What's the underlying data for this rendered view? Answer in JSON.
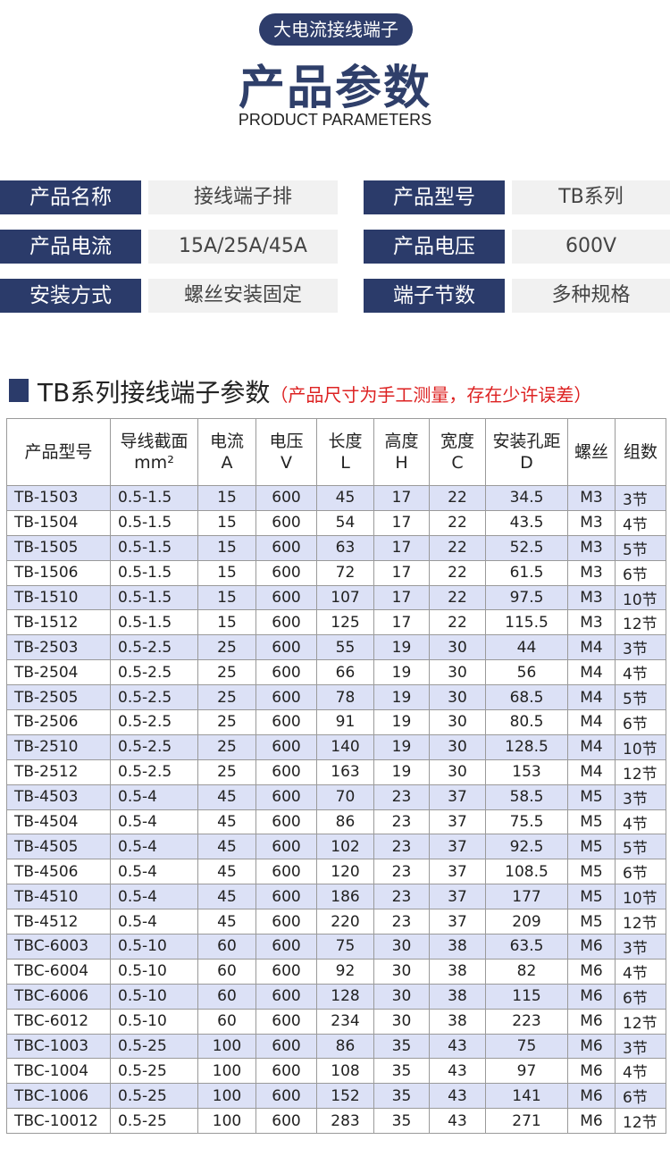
{
  "header": {
    "badge": "大电流接线端子",
    "title": "产品参数",
    "subtitle": "PRODUCT PARAMETERS"
  },
  "specs": [
    {
      "label": "产品名称",
      "value": "接线端子排"
    },
    {
      "label": "产品型号",
      "value": "TB系列"
    },
    {
      "label": "产品电流",
      "value": "15A/25A/45A"
    },
    {
      "label": "产品电压",
      "value": "600V"
    },
    {
      "label": "安装方式",
      "value": "螺丝安装固定"
    },
    {
      "label": "端子节数",
      "value": "多种规格"
    }
  ],
  "section": {
    "title": "TB系列接线端子参数",
    "note": "（产品尺寸为手工测量，存在少许误差）"
  },
  "table": {
    "header": [
      [
        "产品型号"
      ],
      [
        "导线截面",
        "mm²"
      ],
      [
        "电流",
        "A"
      ],
      [
        "电压",
        "V"
      ],
      [
        "长度",
        "L"
      ],
      [
        "高度",
        "H"
      ],
      [
        "宽度",
        "C"
      ],
      [
        "安装孔距",
        "D"
      ],
      [
        "螺丝"
      ],
      [
        "组数"
      ]
    ],
    "rows": [
      [
        "TB-1503",
        "0.5-1.5",
        "15",
        "600",
        "45",
        "17",
        "22",
        "34.5",
        "M3",
        "3节"
      ],
      [
        "TB-1504",
        "0.5-1.5",
        "15",
        "600",
        "54",
        "17",
        "22",
        "43.5",
        "M3",
        "4节"
      ],
      [
        "TB-1505",
        "0.5-1.5",
        "15",
        "600",
        "63",
        "17",
        "22",
        "52.5",
        "M3",
        "5节"
      ],
      [
        "TB-1506",
        "0.5-1.5",
        "15",
        "600",
        "72",
        "17",
        "22",
        "61.5",
        "M3",
        "6节"
      ],
      [
        "TB-1510",
        "0.5-1.5",
        "15",
        "600",
        "107",
        "17",
        "22",
        "97.5",
        "M3",
        "10节"
      ],
      [
        "TB-1512",
        "0.5-1.5",
        "15",
        "600",
        "125",
        "17",
        "22",
        "115.5",
        "M3",
        "12节"
      ],
      [
        "TB-2503",
        "0.5-2.5",
        "25",
        "600",
        "55",
        "19",
        "30",
        "44",
        "M4",
        "3节"
      ],
      [
        "TB-2504",
        "0.5-2.5",
        "25",
        "600",
        "66",
        "19",
        "30",
        "56",
        "M4",
        "4节"
      ],
      [
        "TB-2505",
        "0.5-2.5",
        "25",
        "600",
        "78",
        "19",
        "30",
        "68.5",
        "M4",
        "5节"
      ],
      [
        "TB-2506",
        "0.5-2.5",
        "25",
        "600",
        "91",
        "19",
        "30",
        "80.5",
        "M4",
        "6节"
      ],
      [
        "TB-2510",
        "0.5-2.5",
        "25",
        "600",
        "140",
        "19",
        "30",
        "128.5",
        "M4",
        "10节"
      ],
      [
        "TB-2512",
        "0.5-2.5",
        "25",
        "600",
        "163",
        "19",
        "30",
        "153",
        "M4",
        "12节"
      ],
      [
        "TB-4503",
        "0.5-4",
        "45",
        "600",
        "70",
        "23",
        "37",
        "58.5",
        "M5",
        "3节"
      ],
      [
        "TB-4504",
        "0.5-4",
        "45",
        "600",
        "86",
        "23",
        "37",
        "75.5",
        "M5",
        "4节"
      ],
      [
        "TB-4505",
        "0.5-4",
        "45",
        "600",
        "102",
        "23",
        "37",
        "92.5",
        "M5",
        "5节"
      ],
      [
        "TB-4506",
        "0.5-4",
        "45",
        "600",
        "120",
        "23",
        "37",
        "108.5",
        "M5",
        "6节"
      ],
      [
        "TB-4510",
        "0.5-4",
        "45",
        "600",
        "186",
        "23",
        "37",
        "177",
        "M5",
        "10节"
      ],
      [
        "TB-4512",
        "0.5-4",
        "45",
        "600",
        "220",
        "23",
        "37",
        "209",
        "M5",
        "12节"
      ],
      [
        "TBC-6003",
        "0.5-10",
        "60",
        "600",
        "75",
        "30",
        "38",
        "63.5",
        "M6",
        "3节"
      ],
      [
        "TBC-6004",
        "0.5-10",
        "60",
        "600",
        "92",
        "30",
        "38",
        "82",
        "M6",
        "4节"
      ],
      [
        "TBC-6006",
        "0.5-10",
        "60",
        "600",
        "128",
        "30",
        "38",
        "115",
        "M6",
        "6节"
      ],
      [
        "TBC-6012",
        "0.5-10",
        "60",
        "600",
        "234",
        "30",
        "38",
        "223",
        "M6",
        "12节"
      ],
      [
        "TBC-1003",
        "0.5-25",
        "100",
        "600",
        "86",
        "35",
        "43",
        "75",
        "M6",
        "3节"
      ],
      [
        "TBC-1004",
        "0.5-25",
        "100",
        "600",
        "108",
        "35",
        "43",
        "97",
        "M6",
        "4节"
      ],
      [
        "TBC-1006",
        "0.5-25",
        "100",
        "600",
        "152",
        "35",
        "43",
        "141",
        "M6",
        "6节"
      ],
      [
        "TBC-10012",
        "0.5-25",
        "100",
        "600",
        "283",
        "35",
        "43",
        "271",
        "M6",
        "12节"
      ]
    ]
  }
}
